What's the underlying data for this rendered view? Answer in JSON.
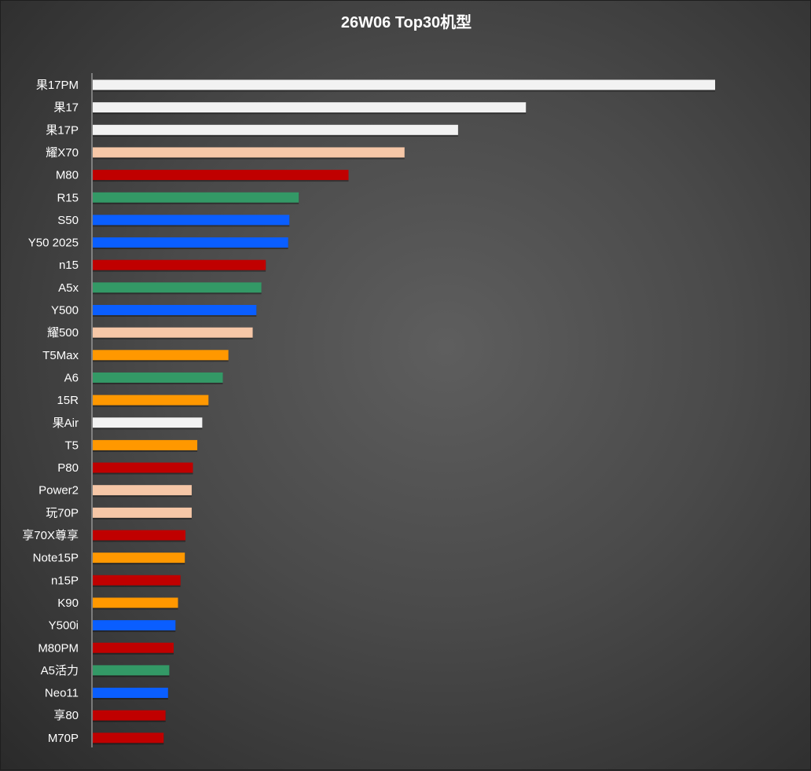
{
  "chart_data": {
    "type": "bar",
    "orientation": "horizontal",
    "title": "26W06 Top30机型",
    "xlabel": "",
    "ylabel": "",
    "grid": false,
    "legend": "none",
    "xlim": [
      0,
      100
    ],
    "categories": [
      "果17PM",
      "果17",
      "果17P",
      "耀X70",
      "M80",
      "R15",
      "S50",
      "Y50 2025",
      "n15",
      "A5x",
      "Y500",
      "耀500",
      "T5Max",
      "A6",
      "15R",
      "果Air",
      "T5",
      "P80",
      "Power2",
      "玩70P",
      "享70X尊享",
      "Note15P",
      "n15P",
      "K90",
      "Y500i",
      "M80PM",
      "A5活力",
      "Neo11",
      "享80",
      "M70P"
    ],
    "values": [
      100,
      69.6,
      58.7,
      50.1,
      41.1,
      33.1,
      31.6,
      31.4,
      27.8,
      27.1,
      26.3,
      25.7,
      21.8,
      20.9,
      18.6,
      17.6,
      16.8,
      16.1,
      15.9,
      15.9,
      14.9,
      14.8,
      14.1,
      13.7,
      13.3,
      13.0,
      12.3,
      12.1,
      11.7,
      11.4
    ],
    "bar_colors": [
      "#f2f2f2",
      "#f2f2f2",
      "#f2f2f2",
      "#f6c7a7",
      "#c00000",
      "#339966",
      "#0a5eff",
      "#0a5eff",
      "#c00000",
      "#339966",
      "#0a5eff",
      "#f6c7a7",
      "#ff9800",
      "#339966",
      "#ff9800",
      "#f2f2f2",
      "#ff9800",
      "#c00000",
      "#f6c7a7",
      "#f6c7a7",
      "#c00000",
      "#ff9800",
      "#c00000",
      "#ff9800",
      "#0a5eff",
      "#c00000",
      "#339966",
      "#0a5eff",
      "#c00000",
      "#c00000"
    ]
  },
  "colors": {
    "background": "#4a4a4a",
    "axis_line": "#bfbfbf",
    "text": "#ffffff"
  }
}
